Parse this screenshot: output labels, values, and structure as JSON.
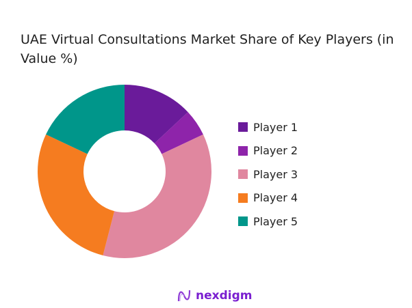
{
  "chart_data": {
    "type": "pie",
    "donut": true,
    "title": "UAE Virtual Consultations Market Share of Key Players (in Value %)",
    "categories": [
      "Player 1",
      "Player 2",
      "Player 3",
      "Player 4",
      "Player 5"
    ],
    "values": [
      13,
      5,
      36,
      28,
      18
    ],
    "colors": [
      "#6a1b9a",
      "#8e24aa",
      "#e0879f",
      "#f57c20",
      "#00968a"
    ],
    "legend": "right"
  },
  "logo": {
    "text": "nexdigm"
  }
}
